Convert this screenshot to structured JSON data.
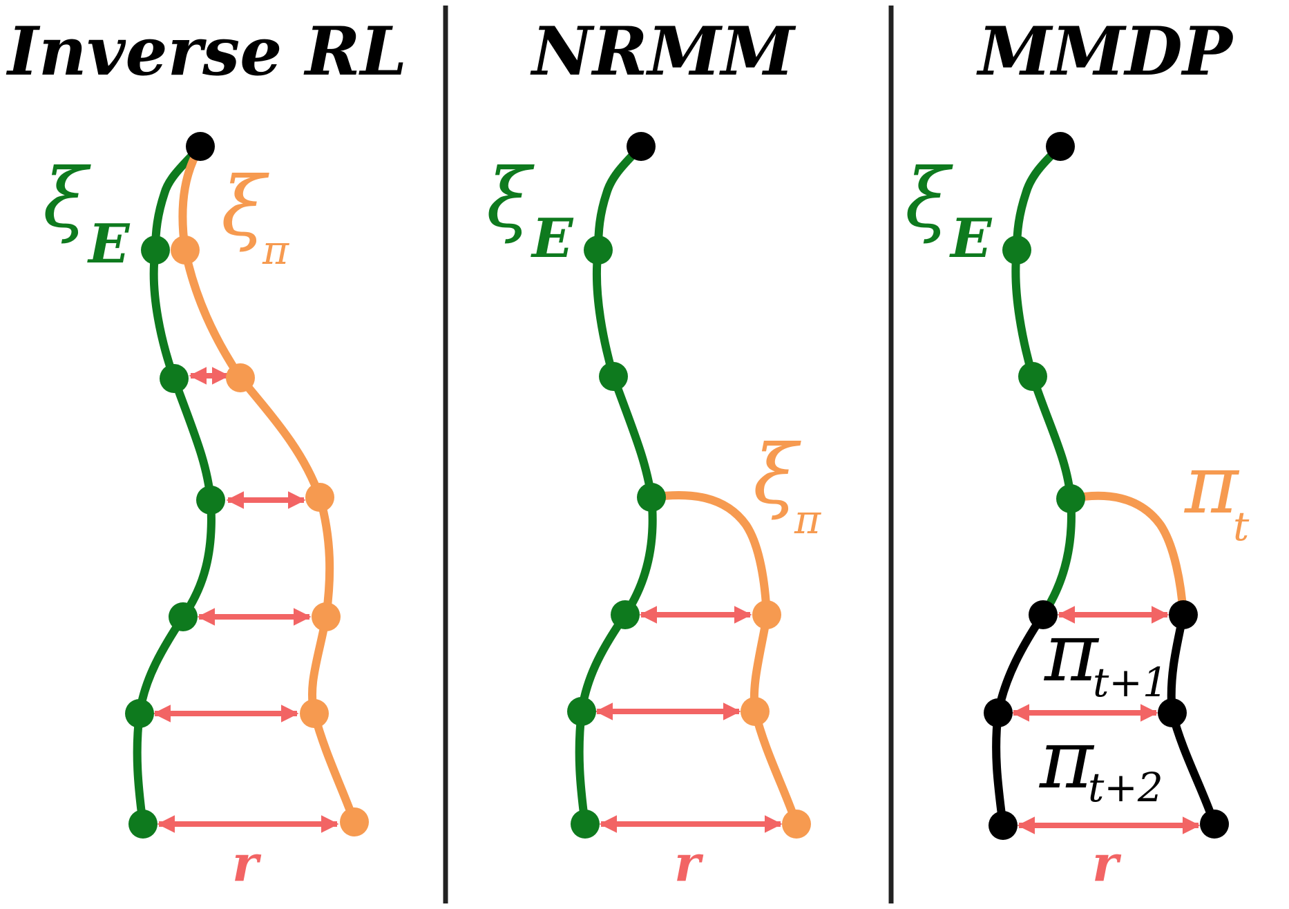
{
  "colors": {
    "expert": "#0e7a1e",
    "policy": "#f69a50",
    "reward": "#f26464",
    "mmdp": "#000000",
    "divider": "#222222"
  },
  "panels": [
    {
      "title": "Inverse RL",
      "expert_label": {
        "symbol": "ξ",
        "sub": "E"
      },
      "policy_label": {
        "symbol": "ξ",
        "sub": "π"
      },
      "reward_label": "r"
    },
    {
      "title": "NRMM",
      "expert_label": {
        "symbol": "ξ",
        "sub": "E"
      },
      "policy_label": {
        "symbol": "ξ",
        "sub": "π"
      },
      "reward_label": "r"
    },
    {
      "title": "MMDP",
      "expert_label": {
        "symbol": "ξ",
        "sub": "E"
      },
      "policy_labels": [
        {
          "symbol": "π",
          "sub": "t"
        },
        {
          "symbol": "π",
          "sub": "t+1"
        },
        {
          "symbol": "π",
          "sub": "t+2"
        }
      ],
      "reward_label": "r"
    }
  ]
}
